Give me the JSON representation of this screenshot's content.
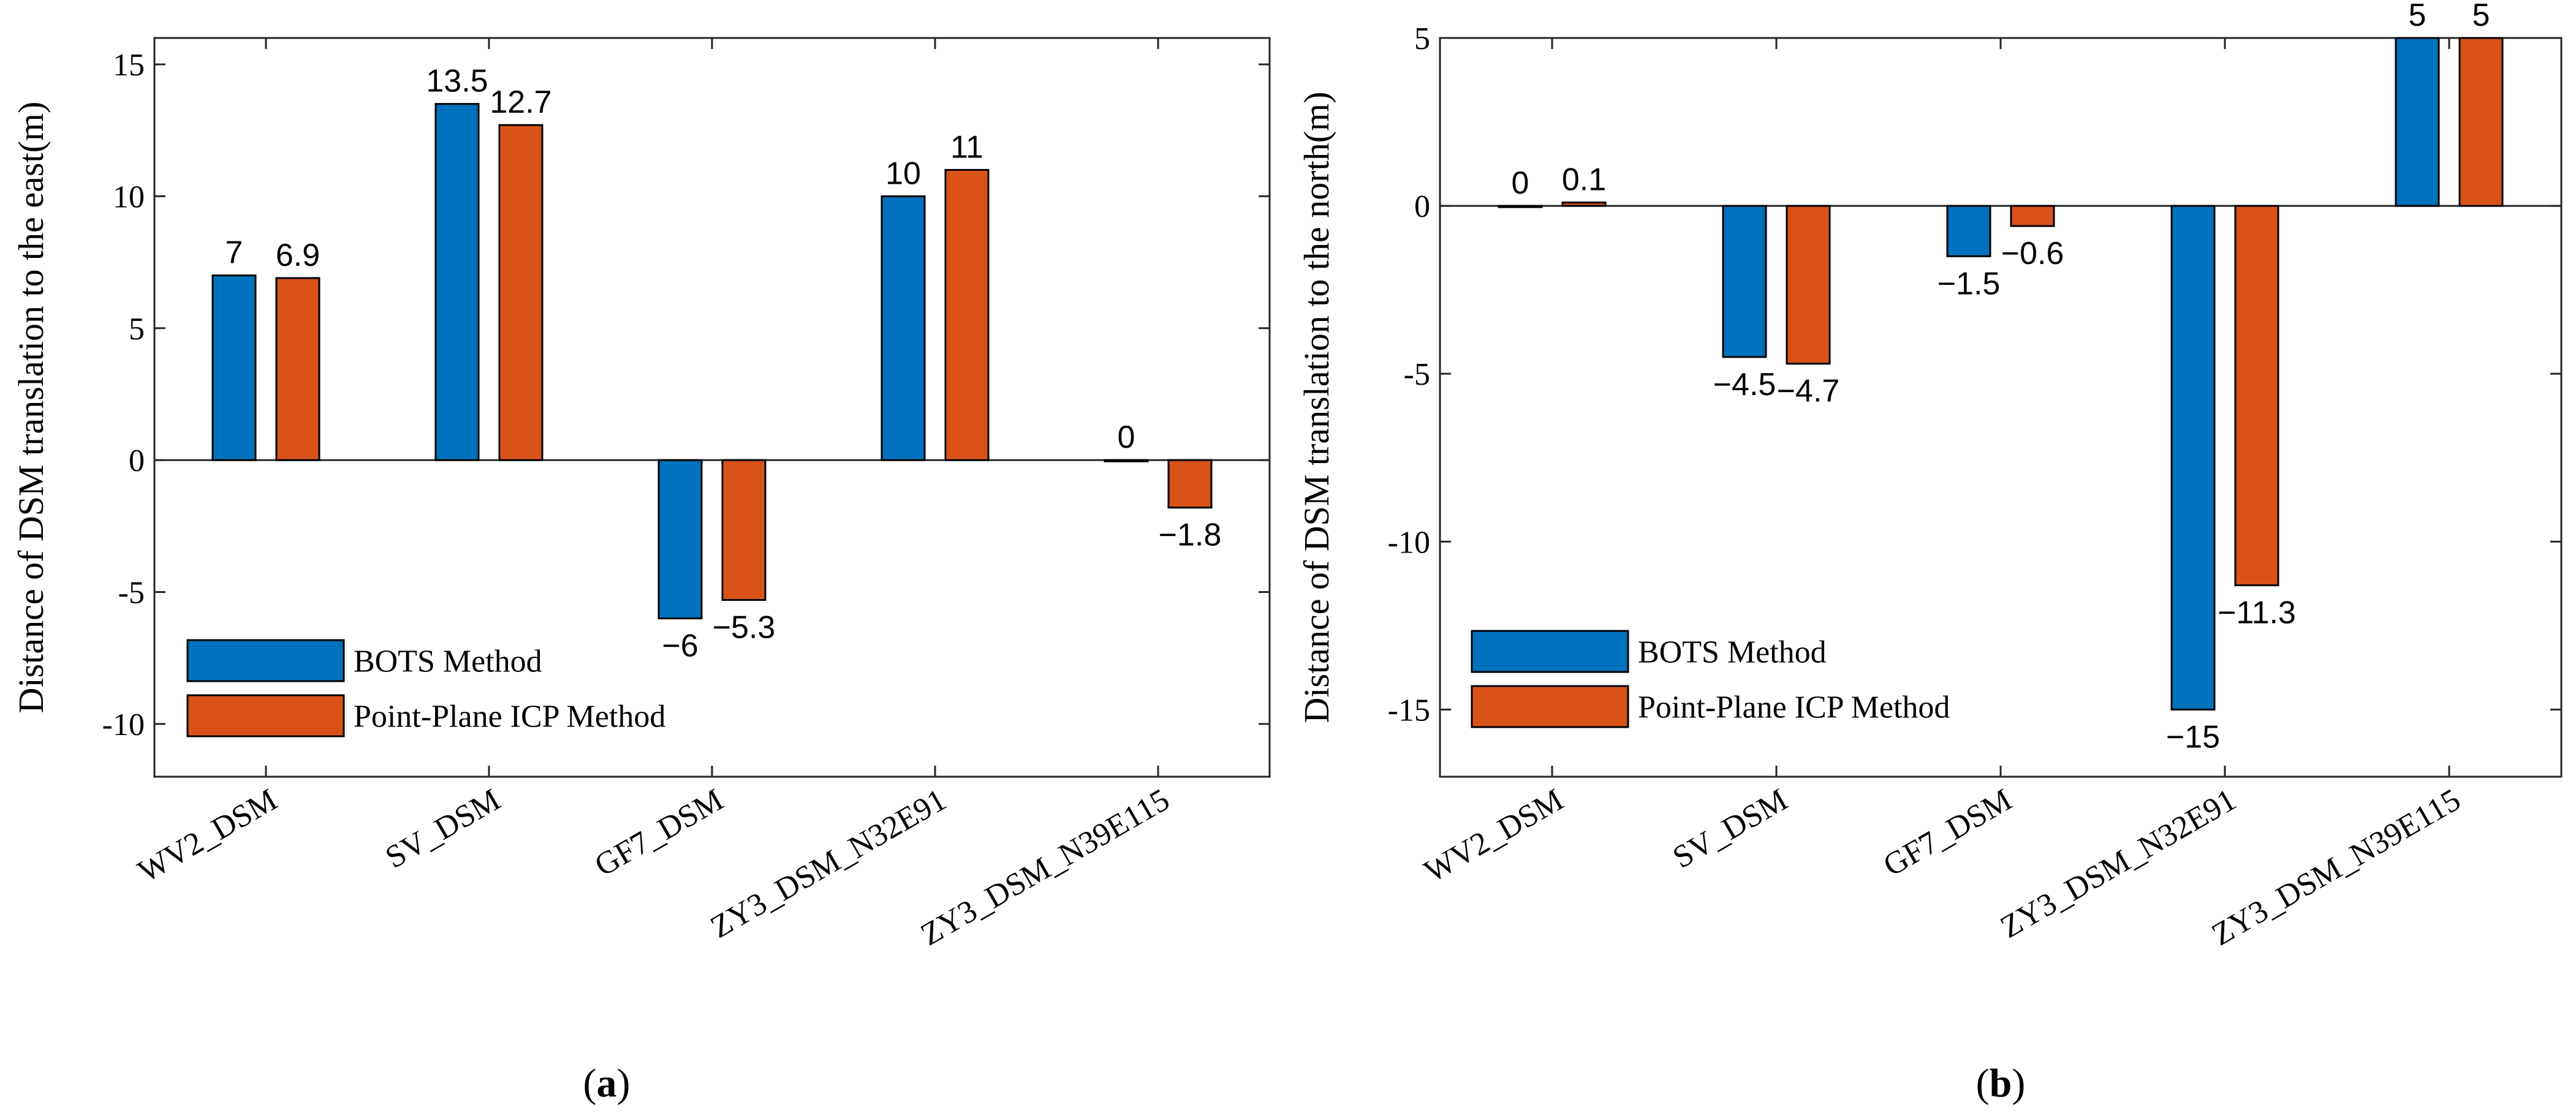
{
  "colors": {
    "series1": "#0072BD",
    "series2": "#D95319"
  },
  "chart_data": [
    {
      "type": "bar",
      "panel_label": [
        "(",
        "a",
        ")"
      ],
      "title": "",
      "xlabel": "",
      "ylabel": "Distance of DSM translation to the east(m)",
      "ylim": [
        -12,
        16
      ],
      "yticks": [
        -10,
        -5,
        0,
        5,
        10,
        15
      ],
      "ytick_labels": [
        "-10",
        "-5",
        "0",
        "5",
        "10",
        "15"
      ],
      "categories": [
        "WV2_DSM",
        "SV_DSM",
        "GF7_DSM",
        "ZY3_DSM_N32E91",
        "ZY3_DSM_N39E115"
      ],
      "series": [
        {
          "name": "BOTS Method",
          "values": [
            7,
            13.5,
            -6,
            10,
            0
          ],
          "labels": [
            "7",
            "13.5",
            "−6",
            "10",
            "0"
          ]
        },
        {
          "name": "Point-Plane ICP Method",
          "values": [
            6.9,
            12.7,
            -5.3,
            11,
            -1.8
          ],
          "labels": [
            "6.9",
            "12.7",
            "−5.3",
            "11",
            "−1.8"
          ]
        }
      ],
      "legend": {
        "position": "bottom-left",
        "entries": [
          "BOTS Method",
          "Point-Plane ICP Method"
        ]
      }
    },
    {
      "type": "bar",
      "panel_label": [
        "(",
        "b",
        ")"
      ],
      "title": "",
      "xlabel": "",
      "ylabel": "Distance of DSM translation to the north(m)",
      "ylim": [
        -17,
        5
      ],
      "yticks": [
        -15,
        -10,
        -5,
        0,
        5
      ],
      "ytick_labels": [
        "-15",
        "-10",
        "-5",
        "0",
        "5"
      ],
      "categories": [
        "WV2_DSM",
        "SV_DSM",
        "GF7_DSM",
        "ZY3_DSM_N32E91",
        "ZY3_DSM_N39E115"
      ],
      "series": [
        {
          "name": "BOTS Method",
          "values": [
            0,
            -4.5,
            -1.5,
            -15,
            5
          ],
          "labels": [
            "0",
            "−4.5",
            "−1.5",
            "−15",
            "5"
          ]
        },
        {
          "name": "Point-Plane ICP Method",
          "values": [
            0.1,
            -4.7,
            -0.6,
            -11.3,
            5
          ],
          "labels": [
            "0.1",
            "−4.7",
            "−0.6",
            "−11.3",
            "5"
          ]
        }
      ],
      "legend": {
        "position": "bottom-left",
        "entries": [
          "BOTS Method",
          "Point-Plane ICP Method"
        ]
      }
    }
  ]
}
